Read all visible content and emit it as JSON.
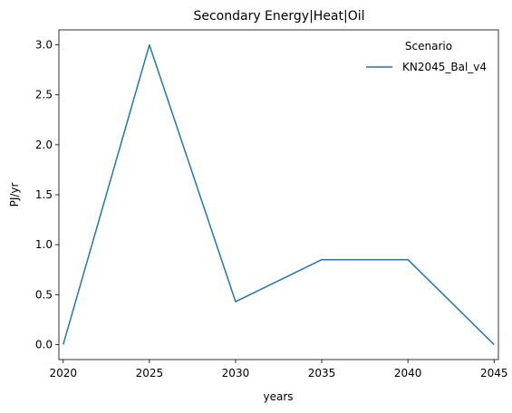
{
  "chart_data": {
    "type": "line",
    "title": "Secondary Energy|Heat|Oil",
    "xlabel": "years",
    "ylabel": "PJ/yr",
    "x": [
      2020,
      2025,
      2030,
      2035,
      2040,
      2045
    ],
    "xticks": [
      "2020",
      "2025",
      "2030",
      "2035",
      "2040",
      "2045"
    ],
    "yticks": [
      "0.0",
      "0.5",
      "1.0",
      "1.5",
      "2.0",
      "2.5",
      "3.0"
    ],
    "xlim": [
      2019.75,
      2045.25
    ],
    "ylim": [
      -0.15,
      3.15
    ],
    "grid": false,
    "legend": {
      "title": "Scenario",
      "placement": "top-right"
    },
    "series": [
      {
        "name": "KN2045_Bal_v4",
        "color": "#1f77b4",
        "values": [
          0.0,
          3.0,
          0.43,
          0.85,
          0.85,
          0.0
        ]
      }
    ]
  }
}
